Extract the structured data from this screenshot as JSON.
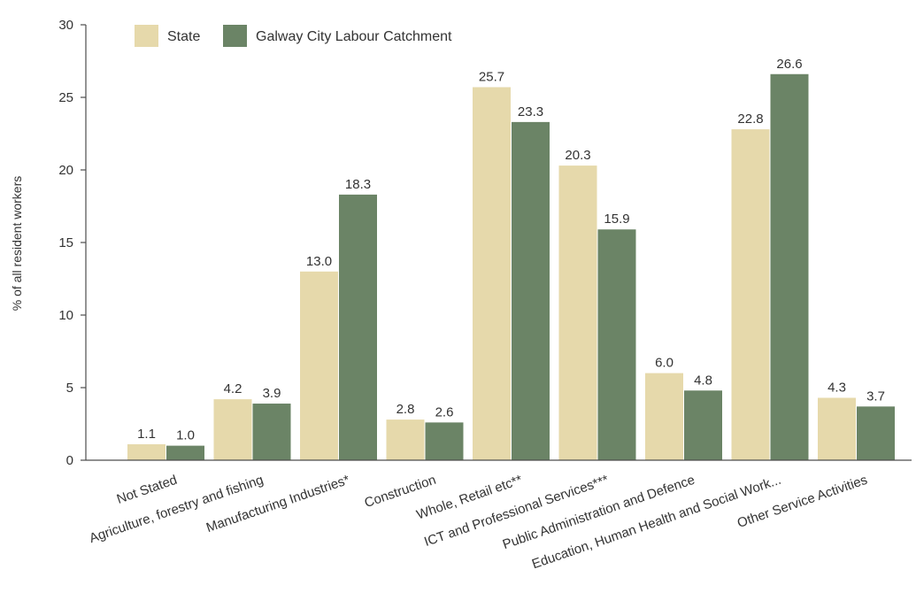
{
  "chart_data": {
    "type": "bar",
    "ylabel": "% of all resident workers",
    "ylim": [
      0,
      30
    ],
    "yticks": [
      0,
      5,
      10,
      15,
      20,
      25,
      30
    ],
    "grid": false,
    "legend_position": "top-left",
    "categories": [
      "Not Stated",
      "Agriculture, forestry and fishing",
      "Manufacturing Industries*",
      "Construction",
      "Whole, Retail etc**",
      "ICT and Professional Services***",
      "Public Administration and Defence",
      "Education, Human Health and Social Work...",
      "Other Service Activities"
    ],
    "series": [
      {
        "name": "State",
        "color": "#e6d9ab",
        "values": [
          1.1,
          4.2,
          13.0,
          2.8,
          25.7,
          20.3,
          6.0,
          22.8,
          4.3
        ],
        "labels": [
          "1.1",
          "4.2",
          "13.0",
          "2.8",
          "25.7",
          "20.3",
          "6.0",
          "22.8",
          "4.3"
        ]
      },
      {
        "name": "Galway City Labour Catchment",
        "color": "#6b8466",
        "values": [
          1.0,
          3.9,
          18.3,
          2.6,
          23.3,
          15.9,
          4.8,
          26.6,
          3.7
        ],
        "labels": [
          "1.0",
          "3.9",
          "18.3",
          "2.6",
          "23.3",
          "15.9",
          "4.8",
          "26.6",
          "3.7"
        ]
      }
    ]
  }
}
